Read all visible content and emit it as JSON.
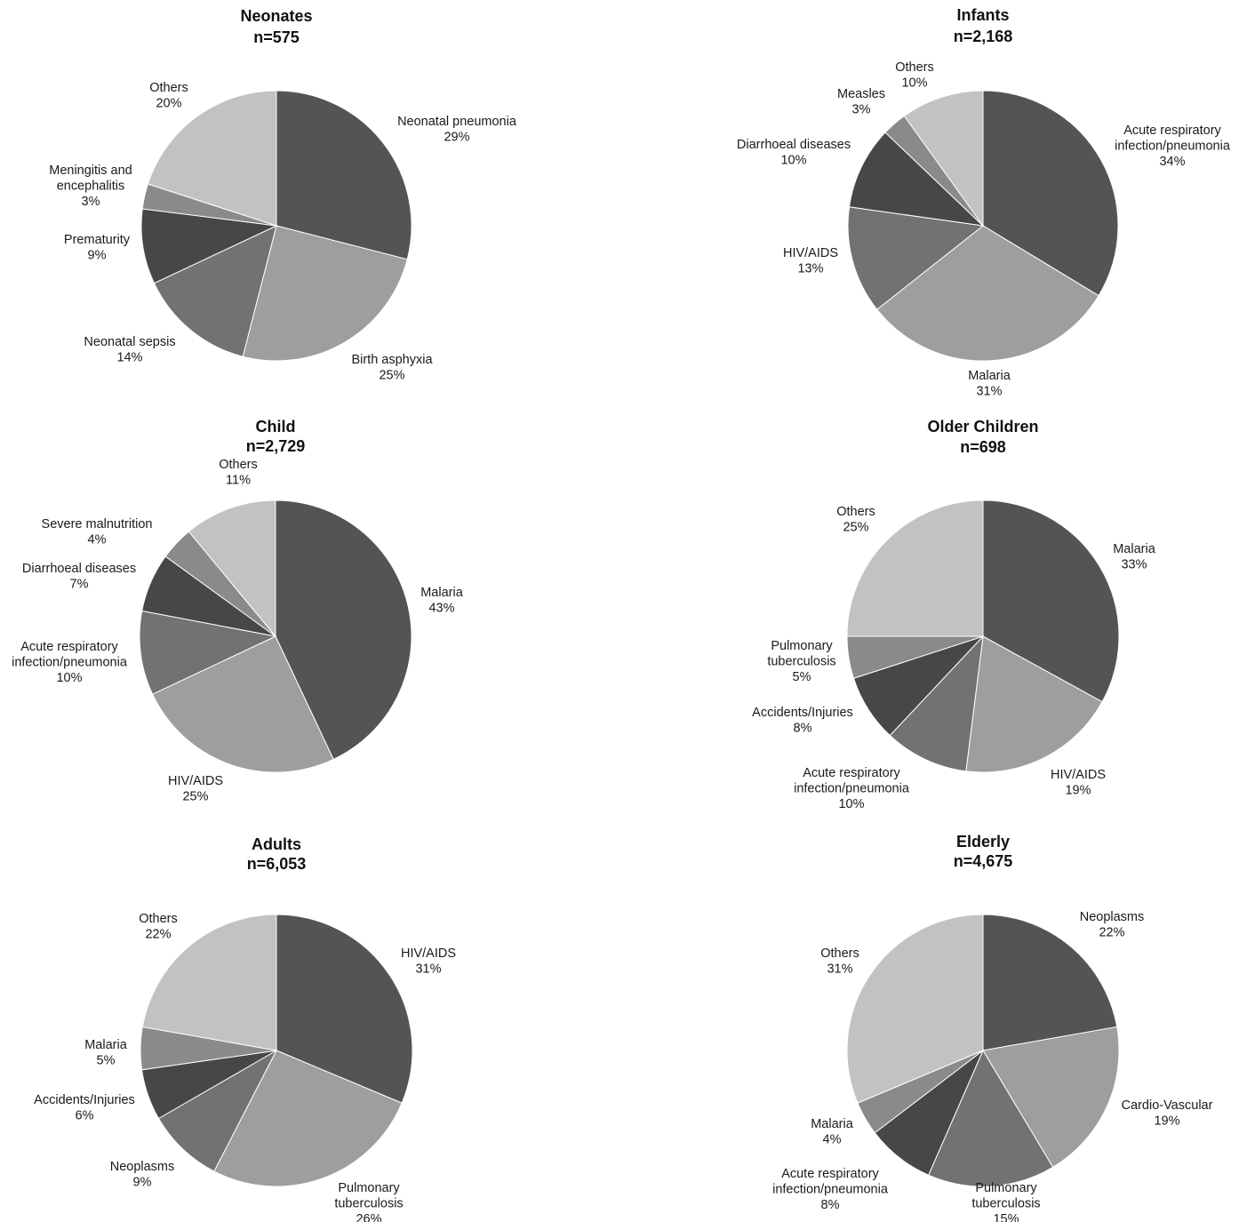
{
  "chart_data": [
    {
      "type": "pie",
      "title": "Neonates",
      "subtitle": "n=575",
      "slices": [
        {
          "label": [
            "Neonatal pneumonia"
          ],
          "value": 29,
          "value_label": "29%",
          "color": "#545454"
        },
        {
          "label": [
            "Birth asphyxia"
          ],
          "value": 25,
          "value_label": "25%",
          "color": "#9e9e9e"
        },
        {
          "label": [
            "Neonatal sepsis"
          ],
          "value": 14,
          "value_label": "14%",
          "color": "#727272"
        },
        {
          "label": [
            "Prematurity"
          ],
          "value": 9,
          "value_label": "9%",
          "color": "#474747"
        },
        {
          "label": [
            "Meningitis and",
            "encephalitis"
          ],
          "value": 3,
          "value_label": "3%",
          "color": "#8a8a8a"
        },
        {
          "label": [
            "Others"
          ],
          "value": 20,
          "value_label": "20%",
          "color": "#c2c2c2"
        }
      ]
    },
    {
      "type": "pie",
      "title": "Infants",
      "subtitle": "n=2,168",
      "slices": [
        {
          "label": [
            "Acute respiratory",
            "infection/pneumonia"
          ],
          "value": 34,
          "value_label": "34%",
          "color": "#545454"
        },
        {
          "label": [
            "Malaria"
          ],
          "value": 31,
          "value_label": "31%",
          "color": "#9e9e9e"
        },
        {
          "label": [
            "HIV/AIDS"
          ],
          "value": 13,
          "value_label": "13%",
          "color": "#727272"
        },
        {
          "label": [
            "Diarrhoeal diseases"
          ],
          "value": 10,
          "value_label": "10%",
          "color": "#474747"
        },
        {
          "label": [
            "Measles"
          ],
          "value": 3,
          "value_label": "3%",
          "color": "#8a8a8a"
        },
        {
          "label": [
            "Others"
          ],
          "value": 10,
          "value_label": "10%",
          "color": "#c2c2c2"
        }
      ]
    },
    {
      "type": "pie",
      "title": "Child",
      "subtitle": "n=2,729",
      "slices": [
        {
          "label": [
            "Malaria"
          ],
          "value": 43,
          "value_label": "43%",
          "color": "#545454"
        },
        {
          "label": [
            "HIV/AIDS"
          ],
          "value": 25,
          "value_label": "25%",
          "color": "#9e9e9e"
        },
        {
          "label": [
            "Acute respiratory",
            "infection/pneumonia"
          ],
          "value": 10,
          "value_label": "10%",
          "color": "#727272"
        },
        {
          "label": [
            "Diarrhoeal diseases"
          ],
          "value": 7,
          "value_label": "7%",
          "color": "#474747"
        },
        {
          "label": [
            "Severe malnutrition"
          ],
          "value": 4,
          "value_label": "4%",
          "color": "#8a8a8a"
        },
        {
          "label": [
            "Others"
          ],
          "value": 11,
          "value_label": "11%",
          "color": "#c2c2c2"
        }
      ]
    },
    {
      "type": "pie",
      "title": "Older Children",
      "subtitle": "n=698",
      "slices": [
        {
          "label": [
            "Malaria"
          ],
          "value": 33,
          "value_label": "33%",
          "color": "#545454"
        },
        {
          "label": [
            "HIV/AIDS"
          ],
          "value": 19,
          "value_label": "19%",
          "color": "#9e9e9e"
        },
        {
          "label": [
            "Acute respiratory",
            "infection/pneumonia"
          ],
          "value": 10,
          "value_label": "10%",
          "color": "#727272"
        },
        {
          "label": [
            "Accidents/Injuries"
          ],
          "value": 8,
          "value_label": "8%",
          "color": "#474747"
        },
        {
          "label": [
            "Pulmonary",
            "tuberculosis"
          ],
          "value": 5,
          "value_label": "5%",
          "color": "#8a8a8a"
        },
        {
          "label": [
            "Others"
          ],
          "value": 25,
          "value_label": "25%",
          "color": "#c2c2c2"
        }
      ]
    },
    {
      "type": "pie",
      "title": "Adults",
      "subtitle": "n=6,053",
      "slices": [
        {
          "label": [
            "HIV/AIDS"
          ],
          "value": 31,
          "value_label": "31%",
          "color": "#545454"
        },
        {
          "label": [
            "Pulmonary",
            "tuberculosis"
          ],
          "value": 26,
          "value_label": "26%",
          "color": "#9e9e9e"
        },
        {
          "label": [
            "Neoplasms"
          ],
          "value": 9,
          "value_label": "9%",
          "color": "#727272"
        },
        {
          "label": [
            "Accidents/Injuries"
          ],
          "value": 6,
          "value_label": "6%",
          "color": "#474747"
        },
        {
          "label": [
            "Malaria"
          ],
          "value": 5,
          "value_label": "5%",
          "color": "#8a8a8a"
        },
        {
          "label": [
            "Others"
          ],
          "value": 22,
          "value_label": "22%",
          "color": "#c2c2c2"
        }
      ]
    },
    {
      "type": "pie",
      "title": "Elderly",
      "subtitle": "n=4,675",
      "slices": [
        {
          "label": [
            "Neoplasms"
          ],
          "value": 22,
          "value_label": "22%",
          "color": "#545454"
        },
        {
          "label": [
            "Cardio-Vascular"
          ],
          "value": 19,
          "value_label": "19%",
          "color": "#9e9e9e"
        },
        {
          "label": [
            "Pulmonary",
            "tuberculosis"
          ],
          "value": 15,
          "value_label": "15%",
          "color": "#727272"
        },
        {
          "label": [
            "Acute respiratory",
            "infection/pneumonia"
          ],
          "value": 8,
          "value_label": "8%",
          "color": "#474747"
        },
        {
          "label": [
            "Malaria"
          ],
          "value": 4,
          "value_label": "4%",
          "color": "#8a8a8a"
        },
        {
          "label": [
            "Others"
          ],
          "value": 31,
          "value_label": "31%",
          "color": "#c2c2c2"
        }
      ]
    }
  ]
}
